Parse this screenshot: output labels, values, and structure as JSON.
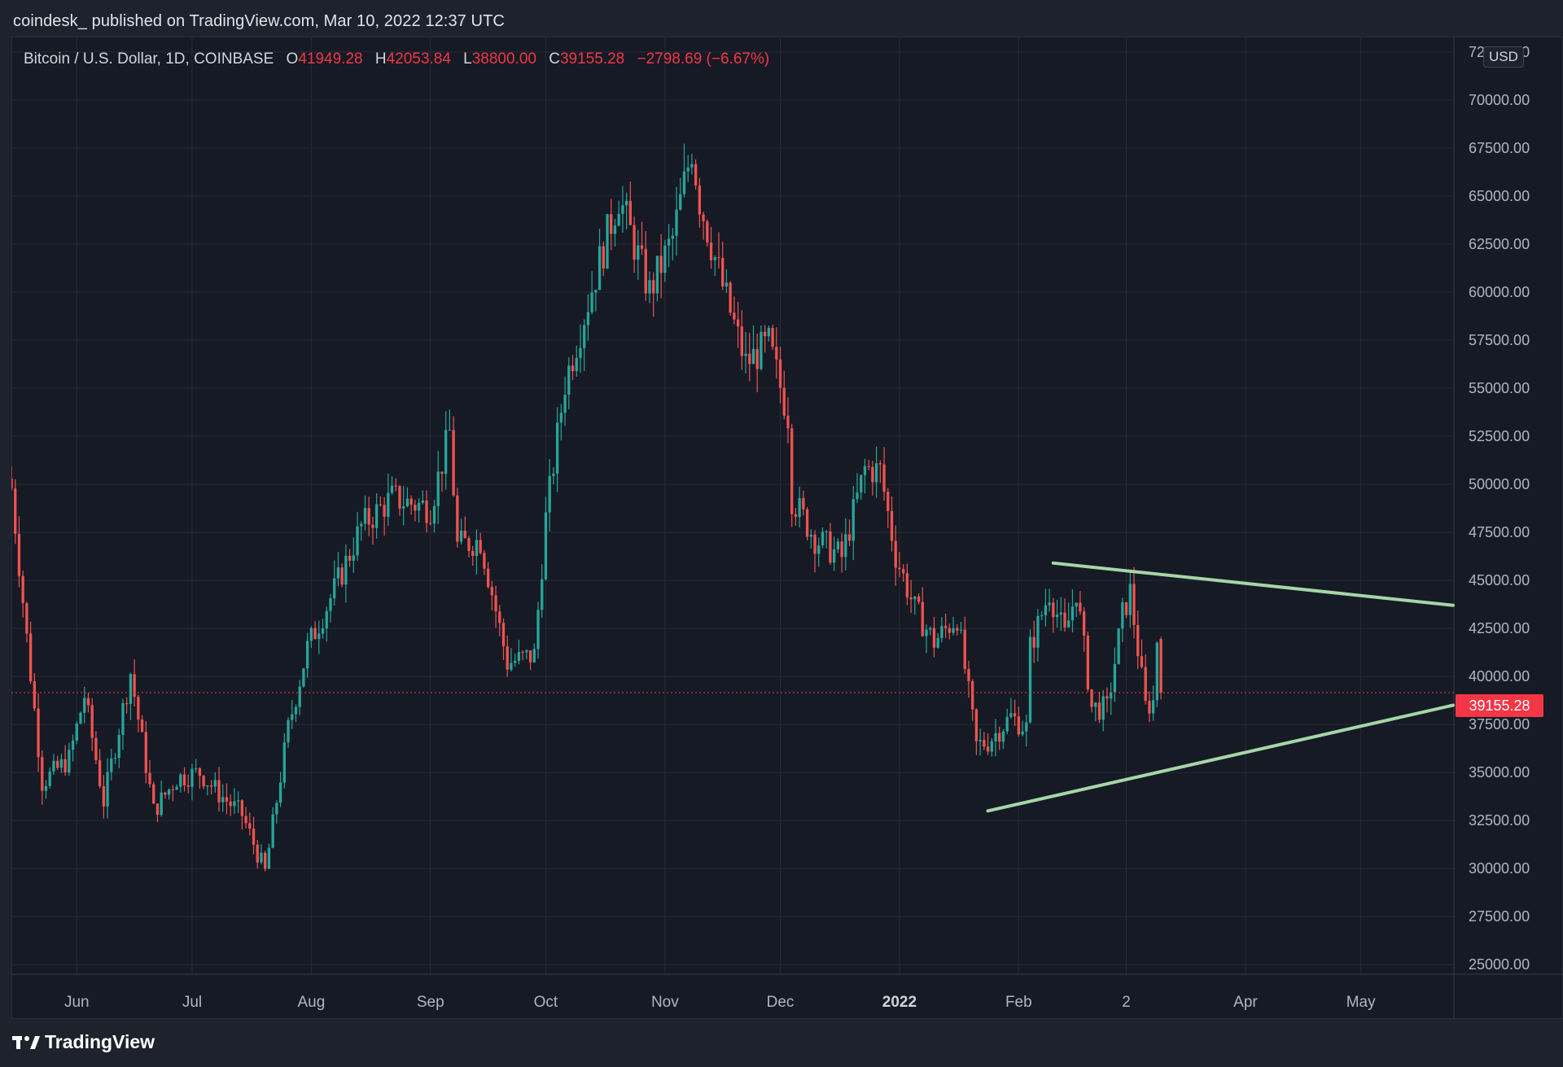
{
  "header": {
    "published": "coindesk_ published on TradingView.com, Mar 10, 2022 12:37 UTC"
  },
  "legend": {
    "symbol": "Bitcoin / U.S. Dollar, 1D, COINBASE",
    "open_label": "O",
    "open": "41949.28",
    "high_label": "H",
    "high": "42053.84",
    "low_label": "L",
    "low": "38800.00",
    "close_label": "C",
    "close": "39155.28",
    "change": "−2798.69 (−6.67%)"
  },
  "currency": "USD",
  "last_price_label": "39155.28",
  "branding": {
    "name": "TradingView"
  },
  "colors": {
    "background": "#161a25",
    "up": "#26a69a",
    "down": "#ef5350",
    "trendline": "#a5d6a7",
    "price_tag": "#f23645",
    "grid": "#262b38"
  },
  "chart_data": {
    "type": "candlestick",
    "title": "Bitcoin / U.S. Dollar, 1D, COINBASE",
    "ylim": [
      25000,
      72500
    ],
    "y_ticks": [
      "25000.00",
      "27500.00",
      "30000.00",
      "32500.00",
      "35000.00",
      "37500.00",
      "40000.00",
      "42500.00",
      "45000.00",
      "47500.00",
      "50000.00",
      "52500.00",
      "55000.00",
      "57500.00",
      "60000.00",
      "62500.00",
      "65000.00",
      "67500.00",
      "70000.00",
      "72500.00"
    ],
    "x_ticks": [
      {
        "label": "Jun",
        "date": "2021-06-01"
      },
      {
        "label": "Jul",
        "date": "2021-07-01"
      },
      {
        "label": "Aug",
        "date": "2021-08-01"
      },
      {
        "label": "Sep",
        "date": "2021-09-01"
      },
      {
        "label": "Oct",
        "date": "2021-10-01"
      },
      {
        "label": "Nov",
        "date": "2021-11-01"
      },
      {
        "label": "Dec",
        "date": "2021-12-01"
      },
      {
        "label": "2022",
        "date": "2022-01-01",
        "bold": true
      },
      {
        "label": "Feb",
        "date": "2022-02-01"
      },
      {
        "label": "2",
        "date": "2022-03-01"
      },
      {
        "label": "Apr",
        "date": "2022-04-01"
      },
      {
        "label": "May",
        "date": "2022-05-01"
      }
    ],
    "x_range": [
      "2021-05-15",
      "2022-05-25"
    ],
    "last_price": 39155.28,
    "anchors": [
      [
        "2021-05-15",
        49800
      ],
      [
        "2021-05-19",
        42000
      ],
      [
        "2021-05-23",
        34500
      ],
      [
        "2021-05-30",
        35700
      ],
      [
        "2021-06-03",
        39000
      ],
      [
        "2021-06-08",
        33500
      ],
      [
        "2021-06-15",
        40200
      ],
      [
        "2021-06-21",
        33000
      ],
      [
        "2021-06-27",
        34700
      ],
      [
        "2021-07-03",
        35000
      ],
      [
        "2021-07-08",
        33900
      ],
      [
        "2021-07-14",
        32800
      ],
      [
        "2021-07-20",
        29800
      ],
      [
        "2021-07-26",
        37300
      ],
      [
        "2021-07-31",
        41500
      ],
      [
        "2021-08-07",
        44500
      ],
      [
        "2021-08-14",
        47800
      ],
      [
        "2021-08-22",
        49300
      ],
      [
        "2021-08-27",
        49000
      ],
      [
        "2021-09-01",
        48800
      ],
      [
        "2021-09-06",
        52700
      ],
      [
        "2021-09-08",
        46800
      ],
      [
        "2021-09-14",
        47100
      ],
      [
        "2021-09-21",
        40700
      ],
      [
        "2021-09-28",
        41100
      ],
      [
        "2021-10-01",
        48200
      ],
      [
        "2021-10-06",
        55300
      ],
      [
        "2021-10-15",
        61600
      ],
      [
        "2021-10-20",
        65000
      ],
      [
        "2021-10-28",
        60000
      ],
      [
        "2021-11-03",
        62800
      ],
      [
        "2021-11-08",
        67500
      ],
      [
        "2021-11-10",
        64800
      ],
      [
        "2021-11-16",
        60300
      ],
      [
        "2021-11-22",
        56300
      ],
      [
        "2021-11-28",
        57300
      ],
      [
        "2021-12-03",
        53600
      ],
      [
        "2021-12-04",
        49300
      ],
      [
        "2021-12-10",
        47200
      ],
      [
        "2021-12-17",
        46200
      ],
      [
        "2021-12-23",
        50800
      ],
      [
        "2021-12-27",
        50700
      ],
      [
        "2021-12-31",
        46300
      ],
      [
        "2022-01-05",
        43500
      ],
      [
        "2022-01-10",
        41800
      ],
      [
        "2022-01-16",
        43100
      ],
      [
        "2022-01-21",
        36400
      ],
      [
        "2022-01-24",
        36600
      ],
      [
        "2022-01-30",
        37900
      ],
      [
        "2022-02-03",
        37300
      ],
      [
        "2022-02-04",
        41500
      ],
      [
        "2022-02-09",
        44400
      ],
      [
        "2022-02-13",
        42100
      ],
      [
        "2022-02-16",
        44500
      ],
      [
        "2022-02-20",
        38400
      ],
      [
        "2022-02-24",
        38300
      ],
      [
        "2022-02-28",
        43200
      ],
      [
        "2022-03-02",
        44400
      ],
      [
        "2022-03-06",
        38400
      ],
      [
        "2022-03-08",
        38700
      ],
      [
        "2022-03-09",
        41950
      ],
      [
        "2022-03-10",
        39155.28
      ]
    ],
    "trendlines": [
      {
        "from": [
          "2022-02-10",
          45900
        ],
        "to": [
          "2022-05-25",
          43700
        ]
      },
      {
        "from": [
          "2022-01-24",
          33000
        ],
        "to": [
          "2022-05-25",
          38500
        ]
      }
    ]
  }
}
